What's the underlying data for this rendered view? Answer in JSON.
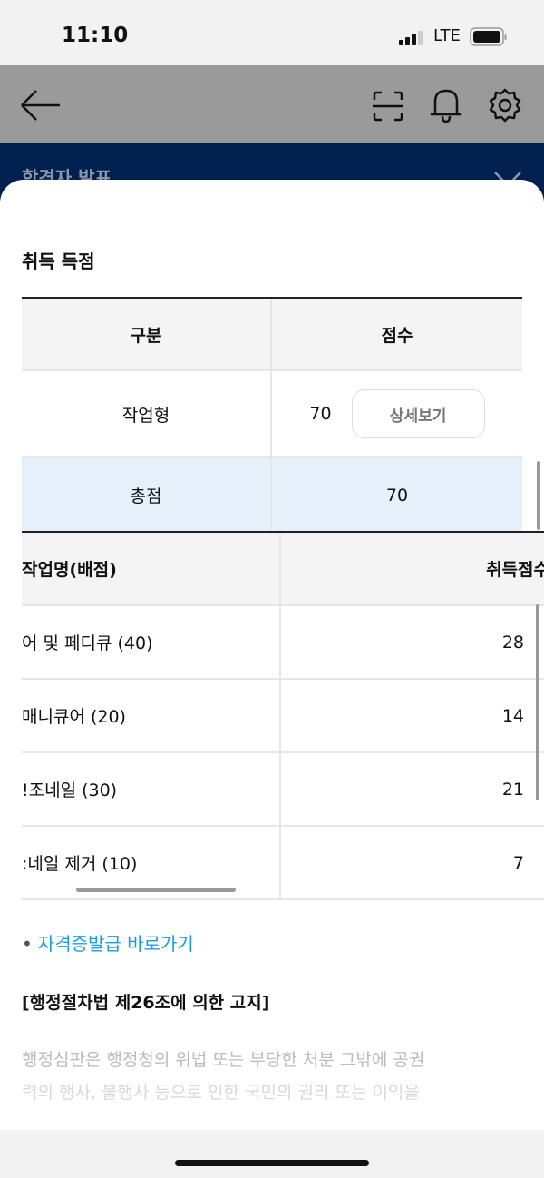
{
  "status_bar": {
    "time": "11:10",
    "network": "LTE"
  },
  "app_bar": {
    "icons": [
      "back-arrow-icon",
      "scan-icon",
      "bell-icon",
      "gear-icon"
    ]
  },
  "banner": {
    "title": "합격자 발표",
    "icon": "close-icon"
  },
  "sheet": {
    "title": "취득 득점",
    "summary_table": {
      "headers": [
        "구분",
        "점수"
      ],
      "rows": [
        {
          "category": "작업형",
          "score": "70",
          "button": "상세보기"
        }
      ],
      "total": {
        "label": "총점",
        "score": "70"
      }
    },
    "detail_table": {
      "headers": [
        "작업명(배점)",
        "취득점수"
      ],
      "rows": [
        {
          "name": "어 및 페디큐 (40)",
          "score": "28"
        },
        {
          "name": "매니큐어 (20)",
          "score": "14"
        },
        {
          "name": "!조네일 (30)",
          "score": "21"
        },
        {
          "name": ":네일 제거 (10)",
          "score": "7"
        }
      ]
    },
    "link": "자격증발급 바로가기",
    "notice_title": "[행정절차법 제26조에 의한 고지]",
    "notice_lines": [
      "행정심판은 행정청의 위법 또는 부당한 처분 그밖에 공권",
      "력의 행사, 불행사 등으로 인한 국민의 권리 또는 이익을"
    ]
  },
  "colors": {
    "navy": "#00214f",
    "link": "#1a9be6",
    "total_row": "#e5f0fb",
    "header_row": "#f4f4f4"
  }
}
